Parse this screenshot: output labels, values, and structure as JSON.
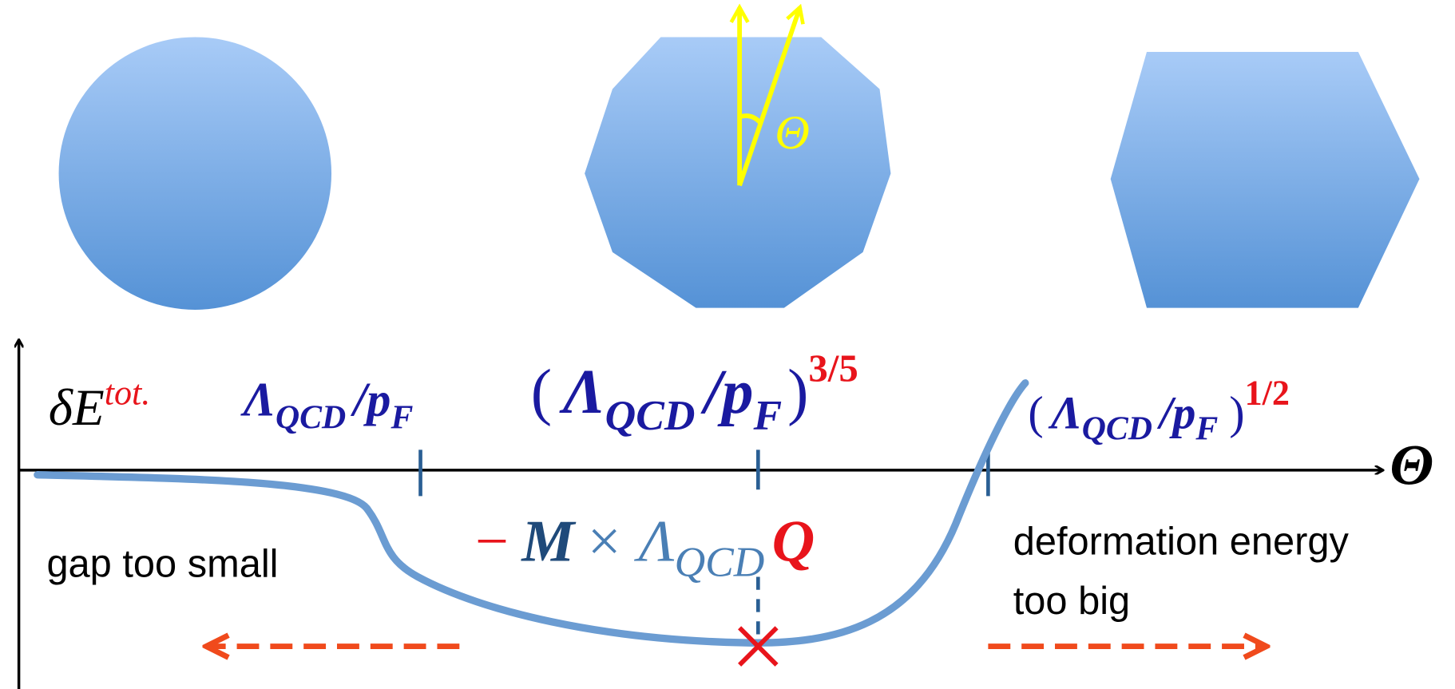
{
  "y_label": {
    "base": "δE",
    "sup": "tot."
  },
  "x_label": "Θ",
  "angle_label": "Θ",
  "scales": [
    {
      "parts": [
        "Λ",
        "QCD",
        "/p",
        "F"
      ]
    },
    {
      "parts": [
        "(",
        "Λ",
        "QCD",
        "/p",
        "F",
        ")",
        "3/5"
      ]
    },
    {
      "parts": [
        "(",
        "Λ",
        "QCD",
        "/p",
        "F",
        ")",
        "1/2"
      ]
    }
  ],
  "energy": {
    "parts": [
      "−",
      "M",
      "× Λ",
      "QCD",
      "Q"
    ]
  },
  "regions": {
    "left": [
      "gap too small"
    ],
    "right": [
      "deformation energy",
      "too big"
    ]
  }
}
